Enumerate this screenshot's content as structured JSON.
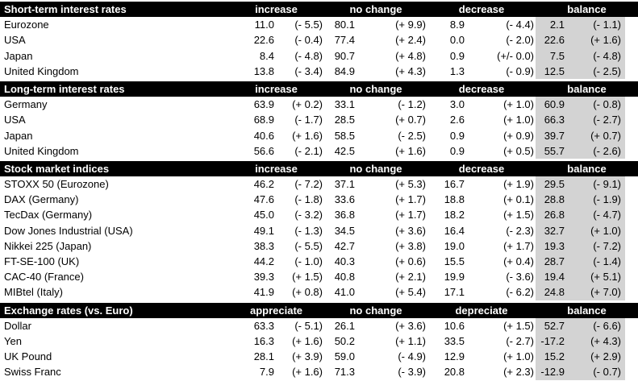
{
  "colors": {
    "header_bg": "#000000",
    "header_text": "#ffffff",
    "balance_bg": "#d3d3d3",
    "row_bg": "#ffffff",
    "text": "#000000"
  },
  "chart_data": {
    "type": "table",
    "title": "Financial market survey expectations table",
    "layout": {
      "column_groups_per_section": [
        "label",
        "col1 value+change",
        "no change value+change",
        "col3 value+change",
        "balance value+change (gray shaded)"
      ],
      "note": "values are percentages of respondents; parenthetical values are changes vs. previous survey"
    },
    "sections": [
      {
        "title": "Short-term interest rates",
        "columns": [
          "increase",
          "no change",
          "decrease",
          "balance"
        ],
        "rows": [
          {
            "label": "Eurozone",
            "cells": [
              [
                "11.0",
                "(- 5.5)"
              ],
              [
                "80.1",
                "(+ 9.9)"
              ],
              [
                "8.9",
                "(- 4.4)"
              ],
              [
                "2.1",
                "(- 1.1)"
              ]
            ]
          },
          {
            "label": "USA",
            "cells": [
              [
                "22.6",
                "(- 0.4)"
              ],
              [
                "77.4",
                "(+ 2.4)"
              ],
              [
                "0.0",
                "(- 2.0)"
              ],
              [
                "22.6",
                "(+ 1.6)"
              ]
            ]
          },
          {
            "label": "Japan",
            "cells": [
              [
                "8.4",
                "(- 4.8)"
              ],
              [
                "90.7",
                "(+ 4.8)"
              ],
              [
                "0.9",
                "(+/- 0.0)"
              ],
              [
                "7.5",
                "(- 4.8)"
              ]
            ]
          },
          {
            "label": "United Kingdom",
            "cells": [
              [
                "13.8",
                "(- 3.4)"
              ],
              [
                "84.9",
                "(+ 4.3)"
              ],
              [
                "1.3",
                "(- 0.9)"
              ],
              [
                "12.5",
                "(- 2.5)"
              ]
            ]
          }
        ]
      },
      {
        "title": "Long-term interest rates",
        "columns": [
          "increase",
          "no change",
          "decrease",
          "balance"
        ],
        "rows": [
          {
            "label": "Germany",
            "cells": [
              [
                "63.9",
                "(+ 0.2)"
              ],
              [
                "33.1",
                "(- 1.2)"
              ],
              [
                "3.0",
                "(+ 1.0)"
              ],
              [
                "60.9",
                "(- 0.8)"
              ]
            ]
          },
          {
            "label": "USA",
            "cells": [
              [
                "68.9",
                "(- 1.7)"
              ],
              [
                "28.5",
                "(+ 0.7)"
              ],
              [
                "2.6",
                "(+ 1.0)"
              ],
              [
                "66.3",
                "(- 2.7)"
              ]
            ]
          },
          {
            "label": "Japan",
            "cells": [
              [
                "40.6",
                "(+ 1.6)"
              ],
              [
                "58.5",
                "(- 2.5)"
              ],
              [
                "0.9",
                "(+ 0.9)"
              ],
              [
                "39.7",
                "(+ 0.7)"
              ]
            ]
          },
          {
            "label": "United Kingdom",
            "cells": [
              [
                "56.6",
                "(- 2.1)"
              ],
              [
                "42.5",
                "(+ 1.6)"
              ],
              [
                "0.9",
                "(+ 0.5)"
              ],
              [
                "55.7",
                "(- 2.6)"
              ]
            ]
          }
        ]
      },
      {
        "title": "Stock market indices",
        "columns": [
          "increase",
          "no change",
          "decrease",
          "balance"
        ],
        "rows": [
          {
            "label": "STOXX 50 (Eurozone)",
            "cells": [
              [
                "46.2",
                "(- 7.2)"
              ],
              [
                "37.1",
                "(+ 5.3)"
              ],
              [
                "16.7",
                "(+ 1.9)"
              ],
              [
                "29.5",
                "(- 9.1)"
              ]
            ]
          },
          {
            "label": "DAX (Germany)",
            "cells": [
              [
                "47.6",
                "(- 1.8)"
              ],
              [
                "33.6",
                "(+ 1.7)"
              ],
              [
                "18.8",
                "(+ 0.1)"
              ],
              [
                "28.8",
                "(- 1.9)"
              ]
            ]
          },
          {
            "label": "TecDax (Germany)",
            "cells": [
              [
                "45.0",
                "(- 3.2)"
              ],
              [
                "36.8",
                "(+ 1.7)"
              ],
              [
                "18.2",
                "(+ 1.5)"
              ],
              [
                "26.8",
                "(- 4.7)"
              ]
            ]
          },
          {
            "label": "Dow Jones Industrial (USA)",
            "cells": [
              [
                "49.1",
                "(- 1.3)"
              ],
              [
                "34.5",
                "(+ 3.6)"
              ],
              [
                "16.4",
                "(- 2.3)"
              ],
              [
                "32.7",
                "(+ 1.0)"
              ]
            ]
          },
          {
            "label": "Nikkei 225 (Japan)",
            "cells": [
              [
                "38.3",
                "(- 5.5)"
              ],
              [
                "42.7",
                "(+ 3.8)"
              ],
              [
                "19.0",
                "(+ 1.7)"
              ],
              [
                "19.3",
                "(- 7.2)"
              ]
            ]
          },
          {
            "label": "FT-SE-100 (UK)",
            "cells": [
              [
                "44.2",
                "(- 1.0)"
              ],
              [
                "40.3",
                "(+ 0.6)"
              ],
              [
                "15.5",
                "(+ 0.4)"
              ],
              [
                "28.7",
                "(- 1.4)"
              ]
            ]
          },
          {
            "label": "CAC-40 (France)",
            "cells": [
              [
                "39.3",
                "(+ 1.5)"
              ],
              [
                "40.8",
                "(+ 2.1)"
              ],
              [
                "19.9",
                "(- 3.6)"
              ],
              [
                "19.4",
                "(+ 5.1)"
              ]
            ]
          },
          {
            "label": "MIBtel (Italy)",
            "cells": [
              [
                "41.9",
                "(+ 0.8)"
              ],
              [
                "41.0",
                "(+ 5.4)"
              ],
              [
                "17.1",
                "(- 6.2)"
              ],
              [
                "24.8",
                "(+ 7.0)"
              ]
            ]
          }
        ]
      },
      {
        "title": "Exchange rates (vs. Euro)",
        "columns": [
          "appreciate",
          "no change",
          "depreciate",
          "balance"
        ],
        "rows": [
          {
            "label": "Dollar",
            "cells": [
              [
                "63.3",
                "(- 5.1)"
              ],
              [
                "26.1",
                "(+ 3.6)"
              ],
              [
                "10.6",
                "(+ 1.5)"
              ],
              [
                "52.7",
                "(- 6.6)"
              ]
            ]
          },
          {
            "label": "Yen",
            "cells": [
              [
                "16.3",
                "(+ 1.6)"
              ],
              [
                "50.2",
                "(+ 1.1)"
              ],
              [
                "33.5",
                "(- 2.7)"
              ],
              [
                "-17.2",
                "(+ 4.3)"
              ]
            ]
          },
          {
            "label": "UK Pound",
            "cells": [
              [
                "28.1",
                "(+ 3.9)"
              ],
              [
                "59.0",
                "(- 4.9)"
              ],
              [
                "12.9",
                "(+ 1.0)"
              ],
              [
                "15.2",
                "(+ 2.9)"
              ]
            ]
          },
          {
            "label": "Swiss Franc",
            "cells": [
              [
                "7.9",
                "(+ 1.6)"
              ],
              [
                "71.3",
                "(- 3.9)"
              ],
              [
                "20.8",
                "(+ 2.3)"
              ],
              [
                "-12.9",
                "(- 0.7)"
              ]
            ]
          }
        ]
      }
    ]
  }
}
